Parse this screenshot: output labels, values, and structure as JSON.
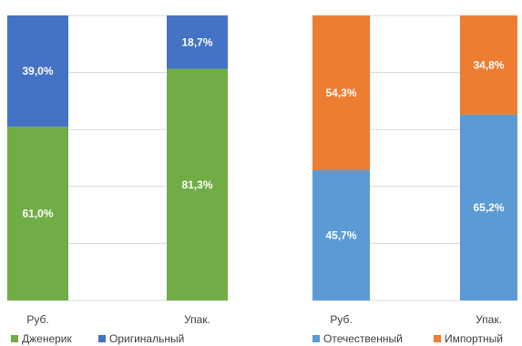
{
  "chart_data": [
    {
      "type": "bar",
      "stacked": true,
      "percent": true,
      "categories": [
        "Руб.",
        "Упак."
      ],
      "ylim": [
        0,
        100
      ],
      "grid": true,
      "legend_position": "bottom",
      "series": [
        {
          "name": "Дженерик",
          "values": [
            61.0,
            81.3
          ],
          "labels": [
            "61,0%",
            "81,3%"
          ],
          "color": "#70ad47"
        },
        {
          "name": "Оригинальный",
          "values": [
            39.0,
            18.7
          ],
          "labels": [
            "39,0%",
            "18,7%"
          ],
          "color": "#4472c4"
        }
      ]
    },
    {
      "type": "bar",
      "stacked": true,
      "percent": true,
      "categories": [
        "Руб.",
        "Упак."
      ],
      "ylim": [
        0,
        100
      ],
      "grid": true,
      "legend_position": "bottom",
      "series": [
        {
          "name": "Отечественный",
          "values": [
            45.7,
            65.2
          ],
          "labels": [
            "45,7%",
            "65,2%"
          ],
          "color": "#5b9bd5"
        },
        {
          "name": "Импортный",
          "values": [
            54.3,
            34.8
          ],
          "labels": [
            "54,3%",
            "34,8%"
          ],
          "color": "#ed7d31"
        }
      ]
    }
  ]
}
